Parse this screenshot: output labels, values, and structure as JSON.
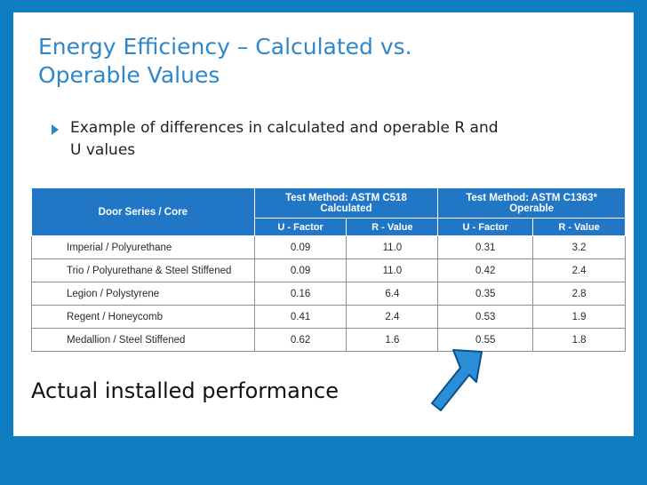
{
  "slide": {
    "title_line1": "Energy Efficiency – Calculated vs.",
    "title_line2": "Operable Values",
    "bullet_line1": "Example of differences in calculated and operable R and",
    "bullet_line2": "U values",
    "caption": "Actual installed performance"
  },
  "table": {
    "corner_label": "Door Series / Core",
    "group_calc_line1": "Test Method: ASTM C518",
    "group_calc_line2": "Calculated",
    "group_oper_line1": "Test Method: ASTM C1363*",
    "group_oper_line2": "Operable",
    "col_u1": "U - Factor",
    "col_r1": "R - Value",
    "col_u2": "U - Factor",
    "col_r2": "R - Value",
    "rows": [
      {
        "name": "Imperial / Polyurethane",
        "u_calc": "0.09",
        "r_calc": "11.0",
        "u_oper": "0.31",
        "r_oper": "3.2"
      },
      {
        "name": "Trio / Polyurethane & Steel Stiffened",
        "u_calc": "0.09",
        "r_calc": "11.0",
        "u_oper": "0.42",
        "r_oper": "2.4"
      },
      {
        "name": "Legion / Polystyrene",
        "u_calc": "0.16",
        "r_calc": "6.4",
        "u_oper": "0.35",
        "r_oper": "2.8"
      },
      {
        "name": "Regent / Honeycomb",
        "u_calc": "0.41",
        "r_calc": "2.4",
        "u_oper": "0.53",
        "r_oper": "1.9"
      },
      {
        "name": "Medallion / Steel Stiffened",
        "u_calc": "0.62",
        "r_calc": "1.6",
        "u_oper": "0.55",
        "r_oper": "1.8"
      }
    ]
  },
  "colors": {
    "background": "#0f7dc2",
    "title": "#2f86c8",
    "table_header": "#2176c5",
    "arrow_fill": "#2a8fd6"
  }
}
